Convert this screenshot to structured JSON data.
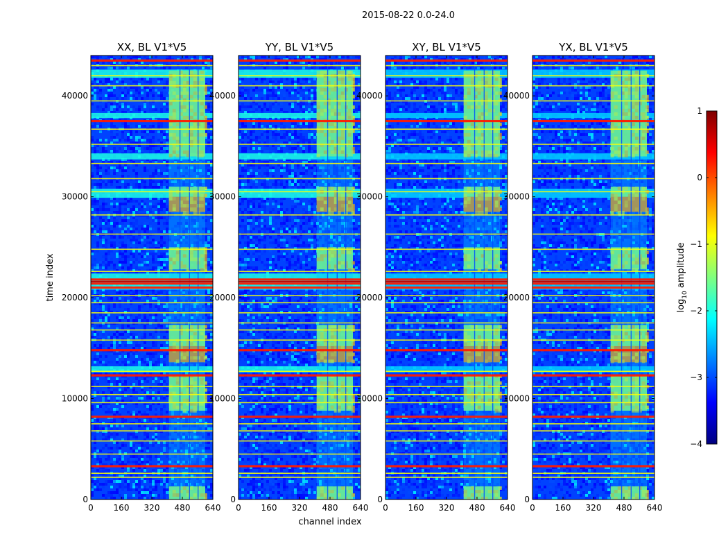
{
  "chart_data": {
    "type": "heatmap",
    "suptitle": "2015-08-22 0.0-24.0",
    "xlabel": "channel index",
    "ylabel": "time index",
    "xlim": [
      0,
      640
    ],
    "ylim": [
      0,
      44000
    ],
    "xticks": [
      0,
      160,
      320,
      480,
      640
    ],
    "yticks": [
      0,
      10000,
      20000,
      30000,
      40000
    ],
    "panels": [
      {
        "title": "XX, BL V1*V5"
      },
      {
        "title": "YY, BL V1*V5"
      },
      {
        "title": "XY, BL V1*V5"
      },
      {
        "title": "YX, BL V1*V5"
      }
    ],
    "colorbar": {
      "label": "log10 amplitude",
      "label_main": "log",
      "label_sub": "10",
      "label_rest": " amplitude",
      "min": -4,
      "max": 1,
      "ticks": [
        1,
        0,
        -1,
        -2,
        -3,
        -4
      ],
      "colormap": "jet"
    },
    "features": {
      "rfi_channel_range": [
        410,
        600
      ],
      "rfi_block_gaps_channels": [
        [
          465,
          470
        ],
        [
          515,
          520
        ],
        [
          560,
          565
        ]
      ],
      "rfi_active_time_ranges": [
        [
          0,
          1300
        ],
        [
          8800,
          12400
        ],
        [
          13600,
          17300
        ],
        [
          22800,
          25000
        ],
        [
          28500,
          31000
        ],
        [
          34000,
          42500
        ]
      ],
      "rfi_strong_time_ranges": [
        [
          13600,
          15200
        ],
        [
          28500,
          30000
        ]
      ],
      "strong_time_flags": [
        3300,
        8200,
        12300,
        14800,
        21000,
        21400,
        21800,
        37500,
        43500
      ],
      "moderate_time_flags": [
        2200,
        2600,
        4500,
        5800,
        6800,
        7500,
        9600,
        10400,
        11200,
        12700,
        15800,
        16800,
        17500,
        18500,
        19500,
        20200,
        22600,
        24800,
        26300,
        28200,
        30500,
        31800,
        33300,
        35200,
        36700,
        39500,
        41000,
        42000,
        43000
      ],
      "broadband_time_ranges": [
        [
          12600,
          13200
        ],
        [
          20800,
          22400
        ],
        [
          29900,
          30800
        ],
        [
          33700,
          34300
        ],
        [
          37800,
          38300
        ],
        [
          41800,
          42600
        ]
      ]
    }
  }
}
